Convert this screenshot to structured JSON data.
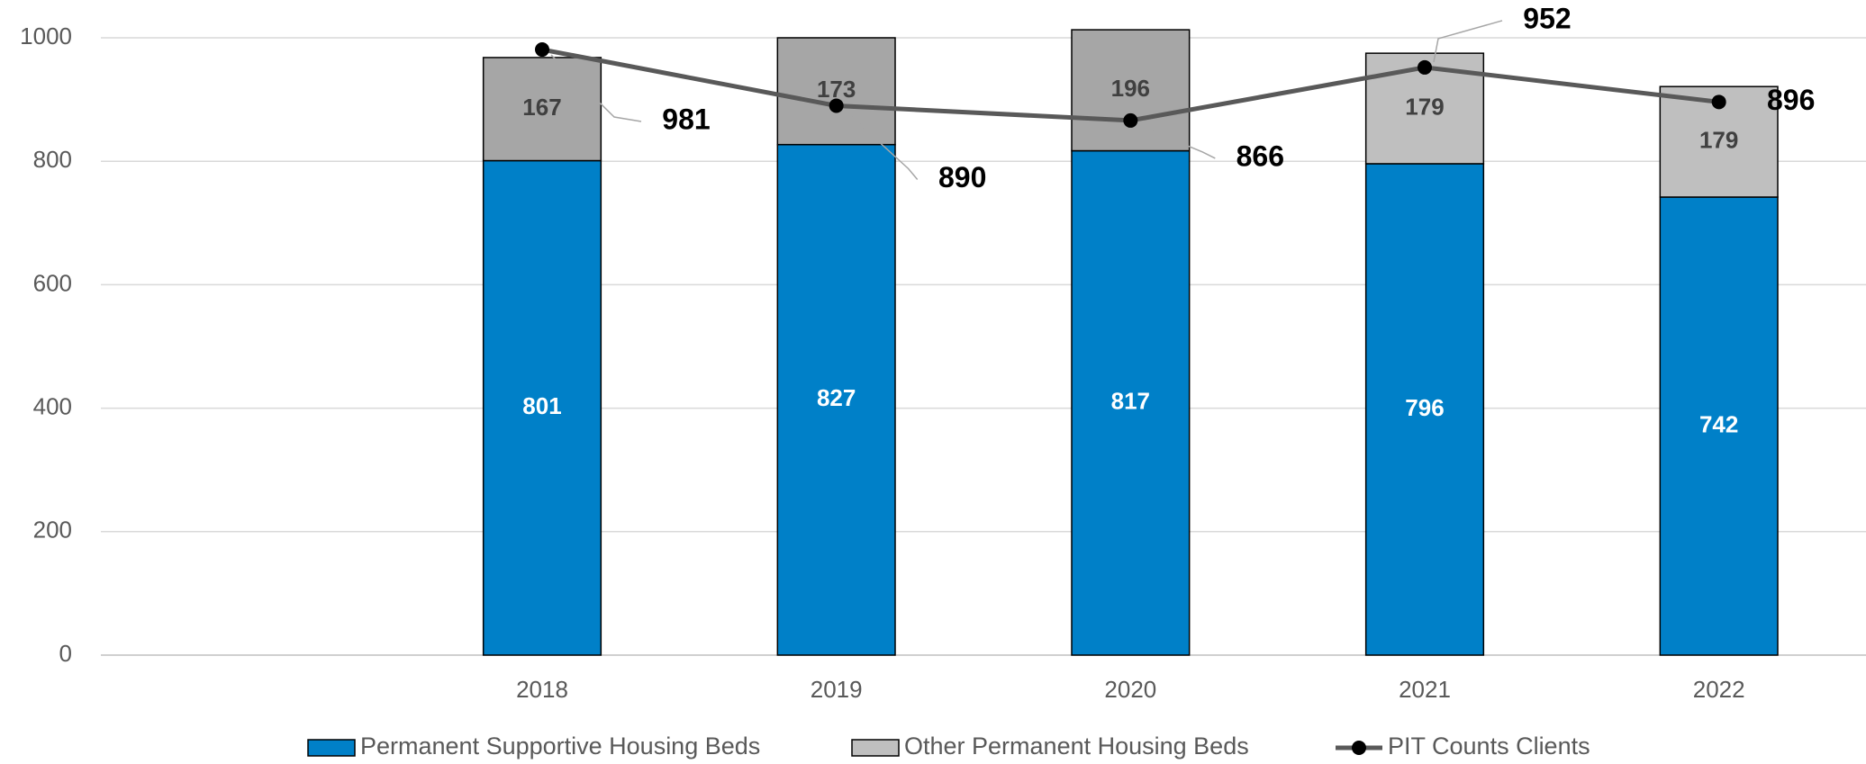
{
  "chart_data": {
    "type": "bar",
    "categories": [
      null,
      "2018",
      "2019",
      "2020",
      "2021",
      "2022"
    ],
    "series": [
      {
        "name": "Permanent Supportive Housing Beds",
        "type": "bar",
        "color": "#0080c8",
        "label_color": "#ffffff",
        "values": [
          null,
          801,
          827,
          817,
          796,
          742
        ]
      },
      {
        "name": "Other Permanent Housing Beds",
        "type": "bar",
        "color": "#bfbfbf",
        "colors": [
          null,
          "#a6a6a6",
          "#a6a6a6",
          "#a6a6a6",
          "#bfbfbf",
          "#bfbfbf"
        ],
        "label_color": "#404040",
        "values": [
          null,
          167,
          173,
          196,
          179,
          179
        ]
      },
      {
        "name": "PIT Counts Clients",
        "type": "line",
        "color": "#595959",
        "marker_color": "#000000",
        "values": [
          null,
          981,
          890,
          866,
          952,
          896
        ]
      }
    ],
    "ylim": [
      0,
      1000
    ],
    "yticks": [
      0,
      200,
      400,
      600,
      800,
      1000
    ],
    "grid": true,
    "stacked": true,
    "legend": "bottom"
  }
}
